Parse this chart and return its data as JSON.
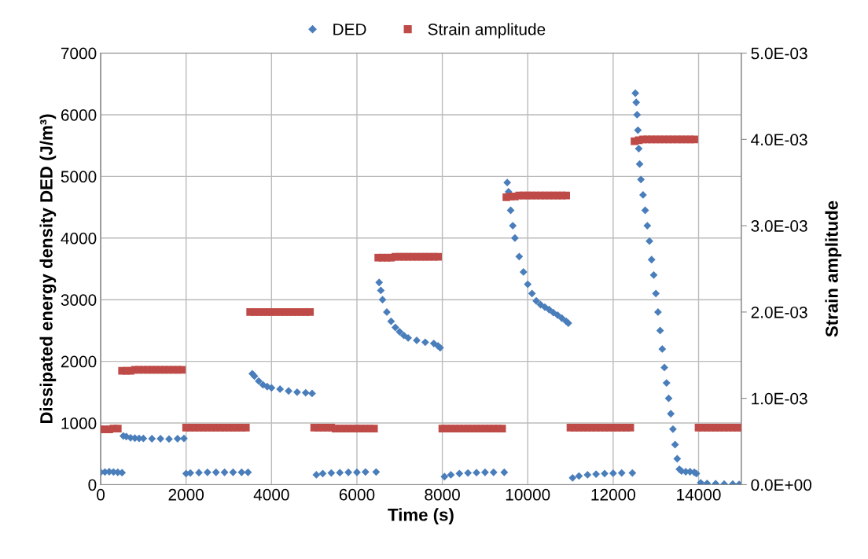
{
  "chart_data": {
    "type": "scatter",
    "xlabel": "Time (s)",
    "ylabel": "Dissipated energy density DED (J/m³)",
    "y2label": "Strain amplitude",
    "xlim": [
      0,
      15000
    ],
    "xticks": [
      0,
      2000,
      4000,
      6000,
      8000,
      10000,
      12000,
      14000
    ],
    "ylim": [
      0,
      7000
    ],
    "yticks": [
      0,
      1000,
      2000,
      3000,
      4000,
      5000,
      6000,
      7000
    ],
    "y2lim": [
      0,
      0.005
    ],
    "y2ticks": [
      {
        "value": 0,
        "label": "0.0E+00"
      },
      {
        "value": 0.001,
        "label": "1.0E-03"
      },
      {
        "value": 0.002,
        "label": "2.0E-03"
      },
      {
        "value": 0.003,
        "label": "3.0E-03"
      },
      {
        "value": 0.004,
        "label": "4.0E-03"
      },
      {
        "value": 0.005,
        "label": "5.0E-03"
      }
    ],
    "grid": true,
    "legend": "top",
    "series": [
      {
        "name": "DED",
        "color": "#4a7ebb",
        "marker": "diamond",
        "axis": "y",
        "x": [
          0,
          100,
          200,
          300,
          400,
          500,
          530,
          600,
          700,
          800,
          900,
          1000,
          1200,
          1400,
          1600,
          1800,
          1950,
          2000,
          2100,
          2300,
          2500,
          2700,
          2900,
          3100,
          3300,
          3450,
          3550,
          3600,
          3700,
          3800,
          3900,
          4000,
          4200,
          4400,
          4600,
          4800,
          4950,
          5050,
          5200,
          5400,
          5600,
          5800,
          6000,
          6200,
          6450,
          6520,
          6560,
          6600,
          6700,
          6800,
          6900,
          7000,
          7100,
          7200,
          7400,
          7600,
          7800,
          7900,
          7950,
          8050,
          8200,
          8400,
          8600,
          8800,
          9000,
          9200,
          9450,
          9520,
          9550,
          9600,
          9650,
          9700,
          9800,
          9900,
          10000,
          10100,
          10200,
          10300,
          10400,
          10500,
          10600,
          10700,
          10800,
          10900,
          10950,
          11050,
          11200,
          11400,
          11600,
          11800,
          12000,
          12200,
          12450,
          12520,
          12540,
          12560,
          12580,
          12600,
          12620,
          12650,
          12700,
          12750,
          12800,
          12850,
          12900,
          12950,
          13000,
          13050,
          13100,
          13150,
          13200,
          13250,
          13300,
          13350,
          13400,
          13450,
          13500,
          13550,
          13600,
          13700,
          13800,
          13900,
          13950,
          14050,
          14200,
          14400,
          14600,
          14800,
          14950
        ],
        "values": [
          200,
          205,
          210,
          205,
          200,
          195,
          790,
          780,
          760,
          755,
          750,
          750,
          745,
          745,
          740,
          745,
          750,
          180,
          190,
          195,
          200,
          200,
          200,
          200,
          200,
          200,
          1800,
          1760,
          1680,
          1620,
          1590,
          1570,
          1550,
          1520,
          1500,
          1490,
          1480,
          160,
          180,
          190,
          195,
          200,
          200,
          205,
          205,
          3280,
          3150,
          3000,
          2800,
          2650,
          2550,
          2480,
          2420,
          2380,
          2340,
          2310,
          2290,
          2250,
          2220,
          130,
          160,
          180,
          190,
          195,
          200,
          200,
          200,
          4900,
          4750,
          4450,
          4200,
          4000,
          3700,
          3450,
          3250,
          3100,
          2980,
          2920,
          2880,
          2840,
          2790,
          2750,
          2700,
          2650,
          2620,
          110,
          140,
          160,
          170,
          180,
          185,
          190,
          190,
          6350,
          6200,
          6000,
          5750,
          5450,
          5200,
          4950,
          4700,
          4450,
          4200,
          3950,
          3650,
          3400,
          3100,
          2800,
          2500,
          2200,
          1900,
          1650,
          1400,
          1150,
          900,
          650,
          420,
          250,
          220,
          210,
          210,
          200,
          180,
          30,
          20,
          15,
          10,
          10,
          5
        ]
      },
      {
        "name": "Strain amplitude",
        "color": "#be4b48",
        "marker": "square",
        "axis": "y2",
        "x": [
          0,
          100,
          200,
          300,
          400,
          500,
          600,
          700,
          800,
          900,
          1000,
          1100,
          1200,
          1300,
          1400,
          1500,
          1600,
          1700,
          1800,
          1900,
          2000,
          2100,
          2200,
          2300,
          2400,
          2500,
          2600,
          2700,
          2800,
          2900,
          3000,
          3100,
          3200,
          3300,
          3400,
          3500,
          3600,
          3700,
          3800,
          3900,
          4000,
          4100,
          4200,
          4300,
          4400,
          4500,
          4600,
          4700,
          4800,
          4900,
          5000,
          5100,
          5200,
          5300,
          5400,
          5500,
          5600,
          5700,
          5800,
          5900,
          6000,
          6100,
          6200,
          6300,
          6400,
          6500,
          6600,
          6700,
          6800,
          6900,
          7000,
          7100,
          7200,
          7300,
          7400,
          7500,
          7600,
          7700,
          7800,
          7900,
          8000,
          8100,
          8200,
          8300,
          8400,
          8500,
          8600,
          8700,
          8800,
          8900,
          9000,
          9100,
          9200,
          9300,
          9400,
          9500,
          9600,
          9700,
          9800,
          9900,
          10000,
          10100,
          10200,
          10300,
          10400,
          10500,
          10600,
          10700,
          10800,
          10900,
          11000,
          11100,
          11200,
          11300,
          11400,
          11500,
          11600,
          11700,
          11800,
          11900,
          12000,
          12100,
          12200,
          12300,
          12400,
          12500,
          12600,
          12700,
          12800,
          12900,
          13000,
          13100,
          13200,
          13300,
          13400,
          13500,
          13600,
          13700,
          13800,
          13900,
          14000,
          14100,
          14200,
          14300,
          14400,
          14500,
          14600,
          14700,
          14800,
          14900,
          15000
        ],
        "values": [
          0.00064,
          0.00064,
          0.00064,
          0.00065,
          0.00065,
          0.00132,
          0.00132,
          0.00132,
          0.00133,
          0.00133,
          0.00133,
          0.00133,
          0.00133,
          0.00133,
          0.00133,
          0.00133,
          0.00133,
          0.00133,
          0.00133,
          0.00133,
          0.00066,
          0.00066,
          0.00066,
          0.00066,
          0.00066,
          0.00066,
          0.00066,
          0.00066,
          0.00066,
          0.00066,
          0.00066,
          0.00066,
          0.00066,
          0.00066,
          0.00066,
          0.002,
          0.002,
          0.002,
          0.002,
          0.002,
          0.002,
          0.002,
          0.002,
          0.002,
          0.002,
          0.002,
          0.002,
          0.002,
          0.002,
          0.002,
          0.00066,
          0.00066,
          0.00066,
          0.00066,
          0.00066,
          0.00065,
          0.00065,
          0.00065,
          0.00065,
          0.00065,
          0.00065,
          0.00065,
          0.00065,
          0.00065,
          0.00065,
          0.00263,
          0.00263,
          0.00263,
          0.00263,
          0.00264,
          0.00264,
          0.00264,
          0.00264,
          0.00264,
          0.00264,
          0.00264,
          0.00264,
          0.00264,
          0.00264,
          0.00264,
          0.00065,
          0.00065,
          0.00065,
          0.00065,
          0.00065,
          0.00065,
          0.00065,
          0.00065,
          0.00065,
          0.00065,
          0.00065,
          0.00065,
          0.00065,
          0.00065,
          0.00065,
          0.00333,
          0.00334,
          0.00334,
          0.00335,
          0.00335,
          0.00335,
          0.00335,
          0.00335,
          0.00335,
          0.00335,
          0.00335,
          0.00335,
          0.00335,
          0.00335,
          0.00335,
          0.00066,
          0.00066,
          0.00066,
          0.00066,
          0.00066,
          0.00066,
          0.00066,
          0.00066,
          0.00066,
          0.00066,
          0.00066,
          0.00066,
          0.00066,
          0.00066,
          0.00066,
          0.00398,
          0.00399,
          0.004,
          0.004,
          0.004,
          0.004,
          0.004,
          0.004,
          0.004,
          0.004,
          0.004,
          0.004,
          0.004,
          0.004,
          0.004,
          0.00066,
          0.00066,
          0.00066,
          0.00066,
          0.00066,
          0.00066,
          0.00066,
          0.00066,
          0.00066,
          0.00066,
          0.00066
        ]
      }
    ]
  }
}
